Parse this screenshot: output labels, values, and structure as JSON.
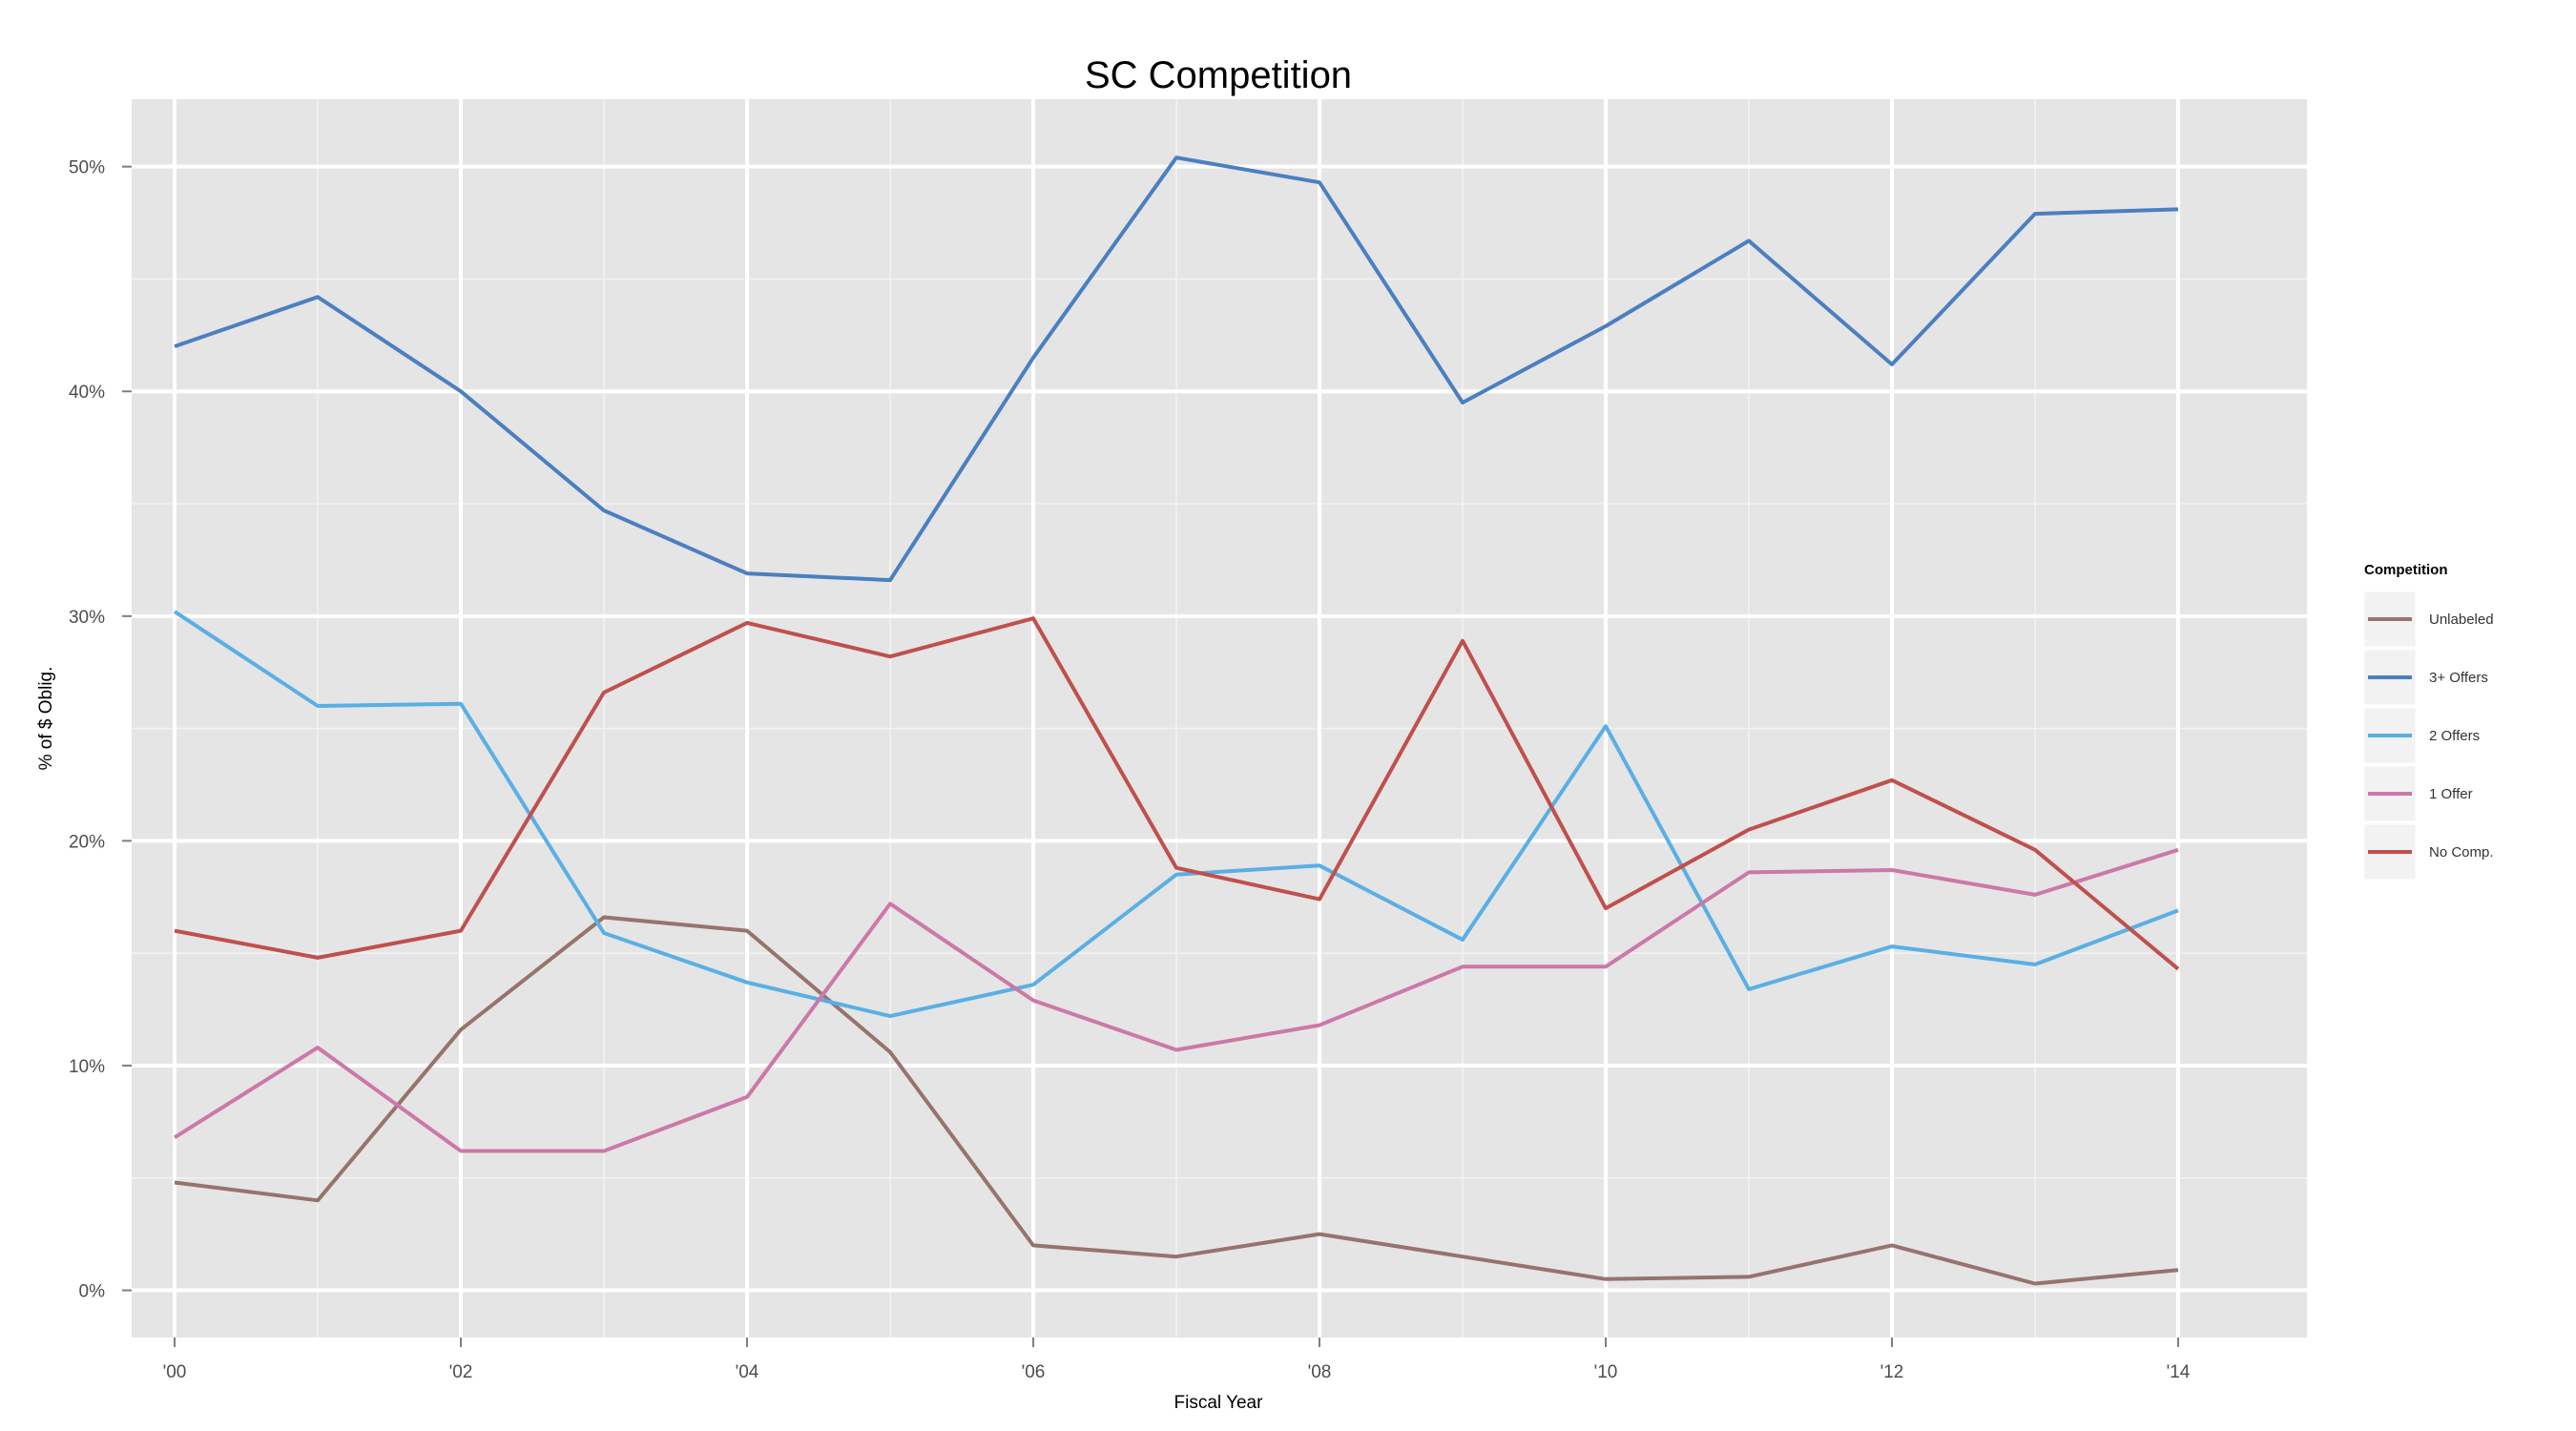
{
  "chart_data": {
    "type": "line",
    "title": "SC Competition",
    "xlabel": "Fiscal Year",
    "ylabel": "% of $ Oblig.",
    "x": [
      2000,
      2001,
      2002,
      2003,
      2004,
      2005,
      2006,
      2007,
      2008,
      2009,
      2010,
      2011,
      2012,
      2013,
      2014
    ],
    "xlim": [
      1999.7,
      2014.9
    ],
    "ylim": [
      -2.1,
      53.0
    ],
    "x_ticks": [
      2000,
      2002,
      2004,
      2006,
      2008,
      2010,
      2012,
      2014
    ],
    "x_tick_labels": [
      "'00",
      "'02",
      "'04",
      "'06",
      "'08",
      "'10",
      "'12",
      "'14"
    ],
    "y_ticks": [
      0,
      10,
      20,
      30,
      40,
      50
    ],
    "y_tick_labels": [
      "0%",
      "10%",
      "20%",
      "30%",
      "40%",
      "50%"
    ],
    "grid": true,
    "background": "#e5e5e5",
    "legend": {
      "title": "Competition",
      "position": "right"
    },
    "series": [
      {
        "name": "Unlabeled",
        "color": "#98736e",
        "values": [
          4.8,
          4.0,
          11.6,
          16.6,
          16.0,
          10.6,
          2.0,
          1.5,
          2.5,
          1.5,
          0.5,
          0.6,
          2.0,
          0.3,
          0.9
        ]
      },
      {
        "name": "3+ Offers",
        "color": "#4b7fc1",
        "values": [
          42.0,
          44.2,
          40.0,
          34.7,
          31.9,
          31.6,
          41.5,
          50.4,
          49.3,
          39.5,
          42.9,
          46.7,
          41.2,
          47.9,
          48.1
        ]
      },
      {
        "name": "2 Offers",
        "color": "#5aafe4",
        "values": [
          30.2,
          26.0,
          26.1,
          15.9,
          13.7,
          12.2,
          13.6,
          18.5,
          18.9,
          15.6,
          25.1,
          13.4,
          15.3,
          14.5,
          16.9
        ]
      },
      {
        "name": "1 Offer",
        "color": "#cc78a8",
        "values": [
          6.8,
          10.8,
          6.2,
          6.2,
          8.6,
          17.2,
          12.9,
          10.7,
          11.8,
          14.4,
          14.4,
          18.6,
          18.7,
          17.6,
          19.6
        ]
      },
      {
        "name": "No Comp.",
        "color": "#c0504d",
        "values": [
          16.0,
          14.8,
          16.0,
          26.6,
          29.7,
          28.2,
          29.9,
          18.8,
          17.4,
          28.9,
          17.0,
          20.5,
          22.7,
          19.6,
          14.3
        ]
      }
    ]
  }
}
